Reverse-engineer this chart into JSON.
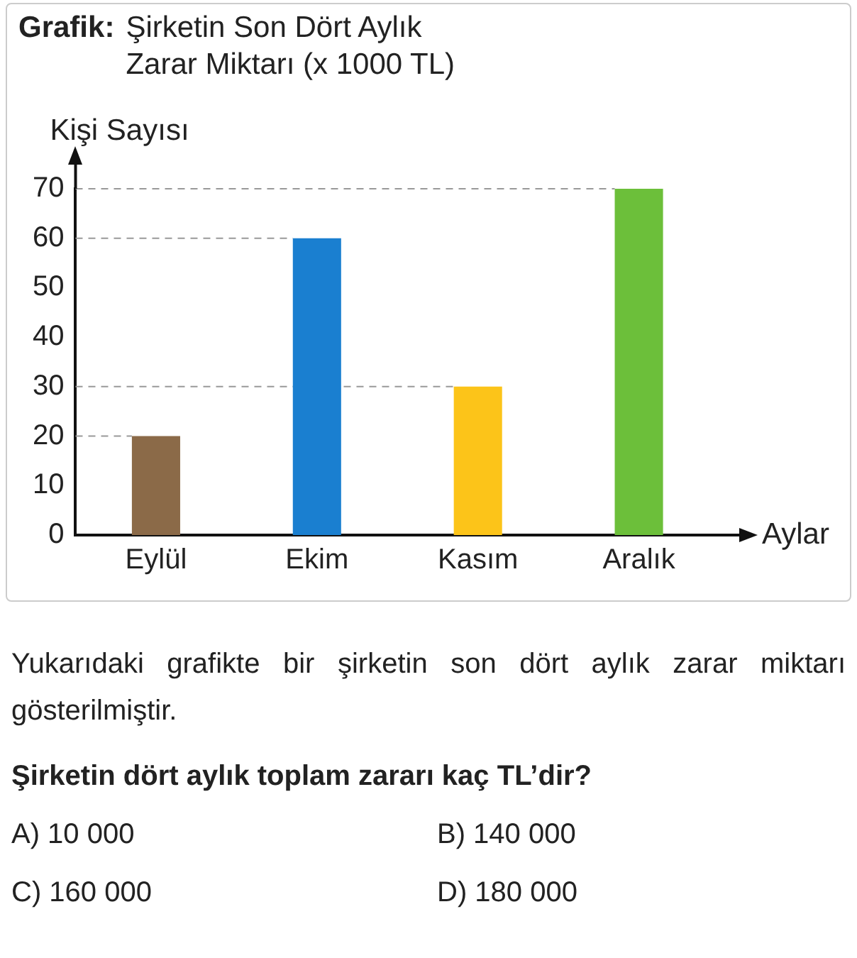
{
  "chart_data": {
    "type": "bar",
    "title": "Grafik:",
    "subtitle": "Şirketin Son Dört Aylık Zarar Miktarı (x 1000 TL)",
    "xlabel": "Aylar",
    "ylabel": "Kişi Sayısı",
    "categories": [
      "Eylül",
      "Ekim",
      "Kasım",
      "Aralık"
    ],
    "values": [
      20,
      60,
      30,
      70
    ],
    "colors": [
      "#8b6a48",
      "#1a7fd0",
      "#fcc419",
      "#6cbf3a"
    ],
    "ylim": [
      0,
      70
    ],
    "yticks": [
      0,
      10,
      20,
      30,
      40,
      50,
      60,
      70
    ],
    "grid": false,
    "ref_lines": [
      {
        "axis": "y",
        "value": 20,
        "color": "#999999",
        "line_style": "dashed"
      },
      {
        "axis": "y",
        "value": 60,
        "color": "#999999",
        "line_style": "dashed"
      },
      {
        "axis": "y",
        "value": 30,
        "color": "#999999",
        "line_style": "dashed"
      },
      {
        "axis": "y",
        "value": 70,
        "color": "#999999",
        "line_style": "dashed"
      }
    ],
    "annotations": [
      "Yukarıdaki grafikte bir şirketin son dört aylık zarar miktarı gösterilmiştir.",
      "Şirketin dört aylık toplam zararı kaç TL’dir?",
      "A)  10 000",
      "B)  140 000",
      "C)  160 000",
      "D)  180 000"
    ]
  }
}
